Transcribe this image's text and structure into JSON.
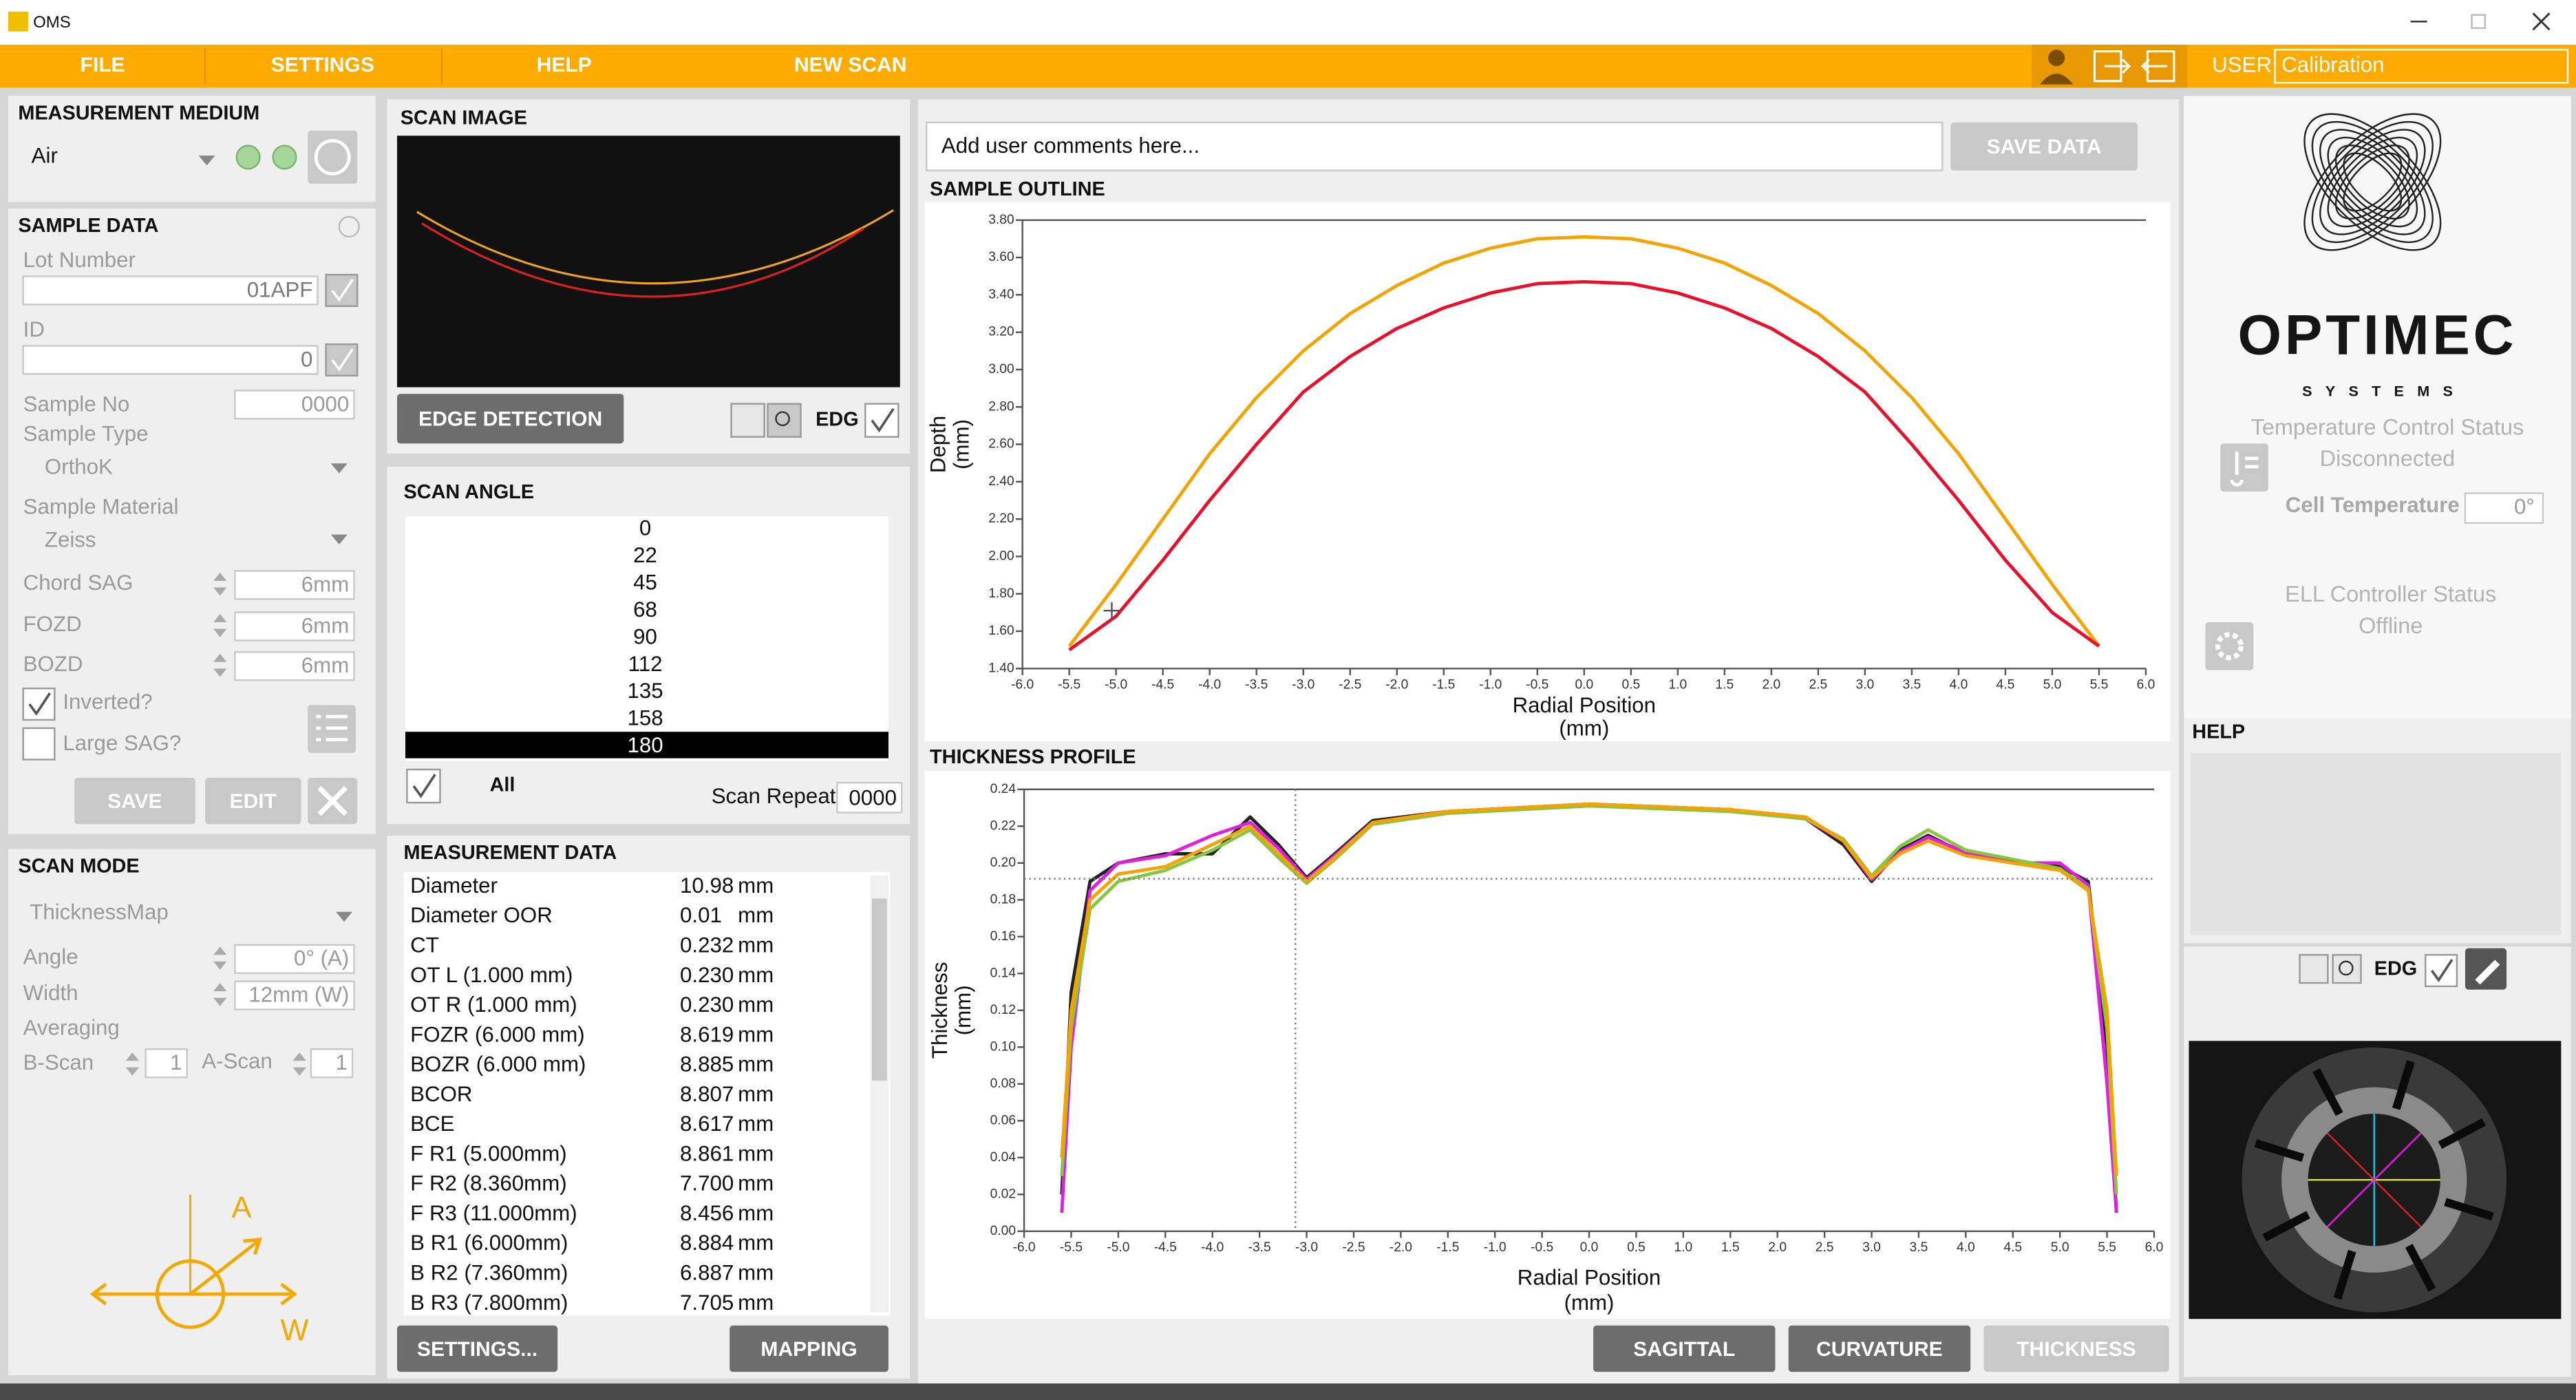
{
  "window": {
    "title": "OMS"
  },
  "menu": {
    "items": [
      "FILE",
      "SETTINGS",
      "HELP",
      "NEW SCAN"
    ],
    "user_label": "USER",
    "user": "Calibration"
  },
  "measurement_medium": {
    "title": "MEASUREMENT MEDIUM",
    "value": "Air"
  },
  "sample_data": {
    "title": "SAMPLE DATA",
    "lot_number_label": "Lot Number",
    "lot_number": "01APF",
    "id_label": "ID",
    "id": "0",
    "sample_no_label": "Sample No",
    "sample_no": "0000",
    "sample_type_label": "Sample Type",
    "sample_type": "OrthoK",
    "sample_material_label": "Sample Material",
    "sample_material": "Zeiss",
    "chord_sag_label": "Chord SAG",
    "chord_sag": "6mm",
    "fozd_label": "FOZD",
    "fozd": "6mm",
    "bozd_label": "BOZD",
    "bozd": "6mm",
    "inverted_label": "Inverted?",
    "large_sag_label": "Large SAG?",
    "save": "SAVE",
    "edit": "EDIT"
  },
  "scan_mode": {
    "title": "SCAN MODE",
    "mode": "ThicknessMap",
    "angle_label": "Angle",
    "angle": "0° (A)",
    "width_label": "Width",
    "width": "12mm (W)",
    "averaging_label": "Averaging",
    "bscan_label": "B-Scan",
    "bscan": "1",
    "ascan_label": "A-Scan",
    "ascan": "1",
    "diagram_a": "A",
    "diagram_w": "W"
  },
  "scan_image": {
    "title": "SCAN IMAGE",
    "edge_detection": "EDGE DETECTION",
    "edg": "EDG"
  },
  "scan_angle": {
    "title": "SCAN ANGLE",
    "angles": [
      0,
      22,
      45,
      68,
      90,
      112,
      135,
      158,
      180
    ],
    "selected": 8,
    "all_label": "All",
    "scan_repeat_label": "Scan Repeat",
    "scan_repeat": "0000"
  },
  "measurement_data": {
    "title": "MEASUREMENT DATA",
    "rows": [
      [
        "Diameter",
        "10.98",
        "mm"
      ],
      [
        "Diameter OOR",
        "0.01",
        "mm"
      ],
      [
        "CT",
        "0.232",
        "mm"
      ],
      [
        "OT  L (1.000 mm)",
        "0.230",
        "mm"
      ],
      [
        "OT R (1.000 mm)",
        "0.230",
        "mm"
      ],
      [
        "FOZR (6.000 mm)",
        "8.619",
        "mm"
      ],
      [
        "BOZR (6.000 mm)",
        "8.885",
        "mm"
      ],
      [
        "BCOR",
        "8.807",
        "mm"
      ],
      [
        "BCE",
        "8.617",
        "mm"
      ],
      [
        "F R1 (5.000mm)",
        "8.861",
        "mm"
      ],
      [
        "F R2 (8.360mm)",
        "7.700",
        "mm"
      ],
      [
        "F R3 (11.000mm)",
        "8.456",
        "mm"
      ],
      [
        "B R1 (6.000mm)",
        "8.884",
        "mm"
      ],
      [
        "B R2 (7.360mm)",
        "6.887",
        "mm"
      ],
      [
        "B R3 (7.800mm)",
        "7.705",
        "mm"
      ]
    ],
    "settings": "SETTINGS...",
    "mapping": "MAPPING"
  },
  "comments": {
    "placeholder": "Add user comments here...",
    "save": "SAVE DATA"
  },
  "sample_outline": {
    "type": "line",
    "title": "SAMPLE OUTLINE",
    "xlabel": [
      "Radial Position",
      "(mm)"
    ],
    "ylabel": [
      "Depth",
      "(mm)"
    ],
    "x": [
      -5.5,
      -5.0,
      -4.5,
      -4.0,
      -3.5,
      -3.0,
      -2.5,
      -2.0,
      -1.5,
      -1.0,
      -0.5,
      0,
      0.5,
      1.0,
      1.5,
      2.0,
      2.5,
      3.0,
      3.5,
      4.0,
      4.5,
      5.0,
      5.5
    ],
    "series": [
      {
        "color": "#f5a300",
        "values": [
          1.52,
          1.85,
          2.2,
          2.55,
          2.85,
          3.1,
          3.3,
          3.45,
          3.57,
          3.65,
          3.7,
          3.71,
          3.7,
          3.65,
          3.57,
          3.45,
          3.3,
          3.1,
          2.85,
          2.55,
          2.2,
          1.85,
          1.52
        ]
      },
      {
        "color": "#e8102a",
        "values": [
          1.5,
          1.68,
          1.98,
          2.3,
          2.6,
          2.88,
          3.07,
          3.22,
          3.33,
          3.41,
          3.46,
          3.47,
          3.46,
          3.41,
          3.33,
          3.22,
          3.07,
          2.88,
          2.6,
          2.3,
          1.98,
          1.7,
          1.52
        ]
      }
    ],
    "xlim": [
      -6.0,
      6.0
    ],
    "ylim": [
      1.4,
      3.8
    ],
    "xticks": [
      {
        "value": -6,
        "label": "-6.0"
      },
      -5.5,
      {
        "value": -5,
        "label": "-5.0"
      },
      -4.5,
      {
        "value": -4,
        "label": "-4.0"
      },
      -3.5,
      {
        "value": -3,
        "label": "-3.0"
      },
      -2.5,
      {
        "value": -2,
        "label": "-2.0"
      },
      -1.5,
      {
        "value": -1,
        "label": "-1.0"
      },
      -0.5,
      {
        "value": 0,
        "label": "0.0"
      },
      0.5,
      {
        "value": 1,
        "label": "1.0"
      },
      1.5,
      {
        "value": 2,
        "label": "2.0"
      },
      2.5,
      {
        "value": 3,
        "label": "3.0"
      },
      3.5,
      {
        "value": 4,
        "label": "4.0"
      },
      4.5,
      {
        "value": 5,
        "label": "5.0"
      },
      5.5,
      {
        "value": 6,
        "label": "6.0"
      }
    ],
    "yticks": [
      {
        "value": 1.4,
        "label": "1.40"
      },
      {
        "value": 1.6,
        "label": "1.60"
      },
      {
        "value": 1.8,
        "label": "1.80"
      },
      {
        "value": 2,
        "label": "2.00"
      },
      {
        "value": 2.2,
        "label": "2.20"
      },
      {
        "value": 2.4,
        "label": "2.40"
      },
      {
        "value": 2.6,
        "label": "2.60"
      },
      {
        "value": 2.8,
        "label": "2.80"
      },
      {
        "value": 3,
        "label": "3.00"
      },
      {
        "value": 3.2,
        "label": "3.20"
      },
      {
        "value": 3.4,
        "label": "3.40"
      },
      {
        "value": 3.6,
        "label": "3.60"
      },
      {
        "value": 3.8,
        "label": "3.80"
      }
    ]
  },
  "thickness_profile": {
    "type": "line",
    "title": "THICKNESS PROFILE",
    "xlabel": [
      "Radial Position",
      "(mm)"
    ],
    "ylabel": [
      "Thickness",
      "(mm)"
    ],
    "x": [
      -5.6,
      -5.5,
      -5.3,
      -5.0,
      -4.5,
      -4.0,
      -3.6,
      -3.3,
      -3.0,
      -2.7,
      -2.3,
      -1.5,
      0,
      1.5,
      2.3,
      2.7,
      3.0,
      3.3,
      3.6,
      4.0,
      4.5,
      5.0,
      5.3,
      5.5,
      5.6
    ],
    "series": [
      {
        "color": "#222222",
        "values": [
          0.02,
          0.13,
          0.19,
          0.2,
          0.205,
          0.205,
          0.225,
          0.21,
          0.192,
          0.205,
          0.223,
          0.228,
          0.232,
          0.229,
          0.224,
          0.21,
          0.19,
          0.207,
          0.215,
          0.205,
          0.201,
          0.198,
          0.19,
          0.1,
          0.01
        ]
      },
      {
        "color": "#e020e0",
        "values": [
          0.01,
          0.1,
          0.185,
          0.2,
          0.204,
          0.215,
          0.222,
          0.208,
          0.191,
          0.204,
          0.222,
          0.228,
          0.231,
          0.229,
          0.224,
          0.212,
          0.191,
          0.206,
          0.214,
          0.206,
          0.2,
          0.2,
          0.188,
          0.08,
          0.01
        ]
      },
      {
        "color": "#88c540",
        "values": [
          0.03,
          0.11,
          0.175,
          0.19,
          0.196,
          0.207,
          0.218,
          0.203,
          0.189,
          0.202,
          0.221,
          0.227,
          0.231,
          0.228,
          0.224,
          0.213,
          0.193,
          0.209,
          0.218,
          0.207,
          0.202,
          0.197,
          0.186,
          0.11,
          0.02
        ]
      },
      {
        "color": "#f5a300",
        "values": [
          0.04,
          0.12,
          0.18,
          0.194,
          0.198,
          0.21,
          0.22,
          0.205,
          0.19,
          0.203,
          0.222,
          0.228,
          0.232,
          0.229,
          0.225,
          0.212,
          0.192,
          0.205,
          0.212,
          0.204,
          0.2,
          0.196,
          0.185,
          0.12,
          0.03
        ]
      }
    ],
    "xlim": [
      -6.0,
      6.0
    ],
    "ylim": [
      0,
      0.24
    ],
    "xticks": [
      {
        "value": -6,
        "label": "-6.0"
      },
      -5.5,
      {
        "value": -5,
        "label": "-5.0"
      },
      -4.5,
      {
        "value": -4,
        "label": "-4.0"
      },
      -3.5,
      {
        "value": -3,
        "label": "-3.0"
      },
      -2.5,
      {
        "value": -2,
        "label": "-2.0"
      },
      -1.5,
      {
        "value": -1,
        "label": "-1.0"
      },
      -0.5,
      {
        "value": 0,
        "label": "0.0"
      },
      0.5,
      {
        "value": 1,
        "label": "1.0"
      },
      1.5,
      {
        "value": 2,
        "label": "2.0"
      },
      2.5,
      {
        "value": 3,
        "label": "3.0"
      },
      3.5,
      {
        "value": 4,
        "label": "4.0"
      },
      4.5,
      {
        "value": 5,
        "label": "5.0"
      },
      5.5,
      {
        "value": 6,
        "label": "6.0"
      }
    ],
    "yticks": [
      {
        "value": 0,
        "label": "0.00"
      },
      {
        "value": 0.02,
        "label": "0.02"
      },
      {
        "value": 0.04,
        "label": "0.04"
      },
      {
        "value": 0.06,
        "label": "0.06"
      },
      {
        "value": 0.08,
        "label": "0.08"
      },
      {
        "value": 0.1,
        "label": "0.10"
      },
      {
        "value": 0.12,
        "label": "0.12"
      },
      {
        "value": 0.14,
        "label": "0.14"
      },
      {
        "value": 0.16,
        "label": "0.16"
      },
      {
        "value": 0.18,
        "label": "0.18"
      },
      {
        "value": 0.2,
        "label": "0.20"
      },
      {
        "value": 0.22,
        "label": "0.22"
      },
      {
        "value": 0.24,
        "label": "0.24"
      }
    ]
  },
  "view_buttons": [
    "SAGITTAL",
    "CURVATURE",
    "THICKNESS"
  ],
  "status": {
    "brand": "OPTIMEC",
    "brand_sub": "SYSTEMS",
    "temp_title": "Temperature Control Status",
    "temp_state": "Disconnected",
    "cell_temp_label": "Cell Temperature",
    "cell_temp": "0°",
    "ell_title": "ELL Controller Status",
    "ell_state": "Offline"
  },
  "help": {
    "title": "HELP"
  },
  "camera": {
    "edg": "EDG"
  }
}
